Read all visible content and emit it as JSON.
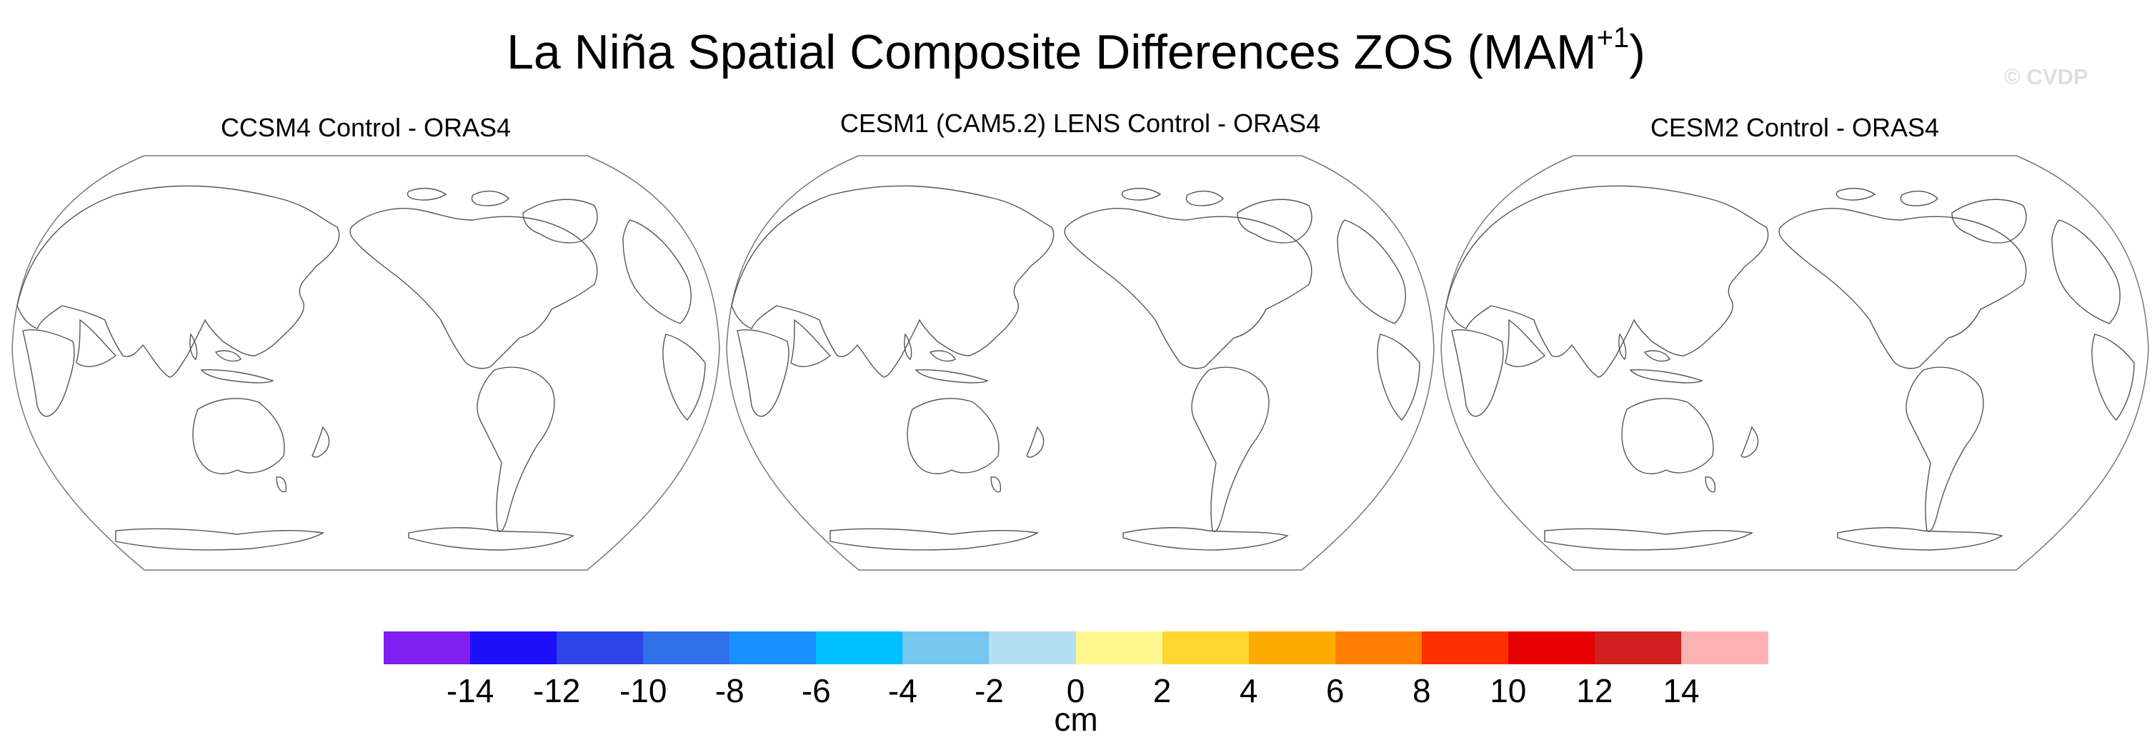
{
  "title": {
    "main": "La Niña Spatial Composite Differences ZOS (MAM",
    "superscript": "+1",
    "close": ")"
  },
  "watermark": "© CVDP",
  "panels": [
    {
      "title": "CCSM4 Control - ORAS4"
    },
    {
      "title": "CESM1 (CAM5.2) LENS Control - ORAS4"
    },
    {
      "title": "CESM2 Control - ORAS4"
    }
  ],
  "colorbar": {
    "colors": [
      "#8020f0",
      "#1c10f8",
      "#2c44e8",
      "#3070e8",
      "#1a90ff",
      "#00c0ff",
      "#76c6f0",
      "#b3dff3",
      "#fff68f",
      "#ffd530",
      "#ffaa00",
      "#ff7f00",
      "#ff3000",
      "#e60000",
      "#d11f1f",
      "#ffb2b2"
    ],
    "ticks": [
      "-14",
      "-12",
      "-10",
      "-8",
      "-6",
      "-4",
      "-2",
      "0",
      "2",
      "4",
      "6",
      "8",
      "10",
      "12",
      "14"
    ],
    "units": "cm"
  }
}
